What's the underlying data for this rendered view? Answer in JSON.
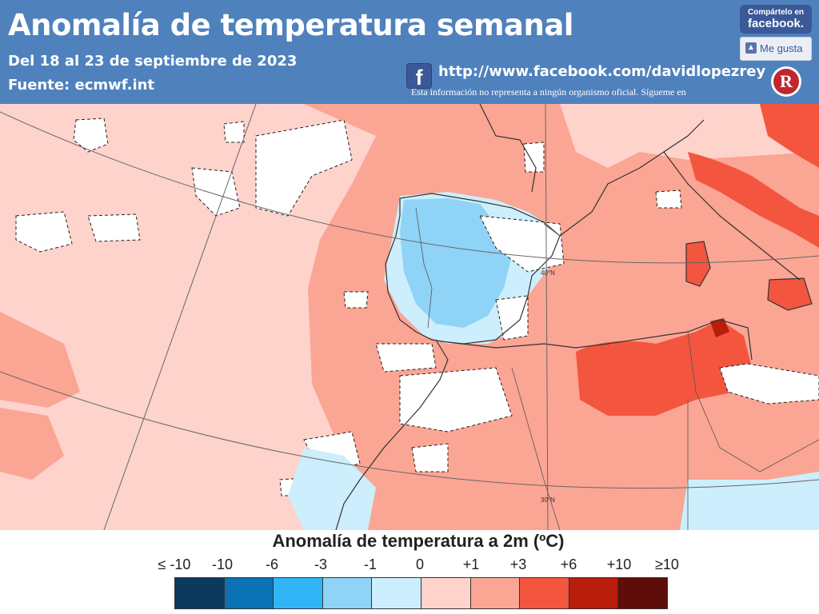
{
  "header": {
    "title": "Anomalía de temperatura semanal",
    "subtitle": "Del 18 al 23 de septiembre de 2023",
    "source": "Fuente: ecmwf.int",
    "fb_url": "http://www.facebook.com/davidlopezrey",
    "disclaimer": "Esta información no representa a ningún organismo oficial. Sígueme en",
    "fb_logo_letter": "f",
    "share_top": "Compártelo en",
    "share_fb": "facebook.",
    "like_label": "Me gusta",
    "brand_letter": "R"
  },
  "map": {
    "lat_labels": [
      "40°N",
      "30°N"
    ],
    "regions": [
      {
        "name": "iberia-interior",
        "anomaly_class": "-3 to -1"
      },
      {
        "name": "north-africa-east",
        "anomaly_class": "+3 to +6"
      },
      {
        "name": "italy-balkans",
        "anomaly_class": "+3 to +6"
      },
      {
        "name": "atlantic",
        "anomaly_class": "0 to +1"
      }
    ]
  },
  "legend": {
    "title": "Anomalía de temperatura a 2m (ºC)",
    "ticks": [
      "≤ -10",
      "-10",
      "-6",
      "-3",
      "-1",
      "0",
      "+1",
      "+3",
      "+6",
      "+10",
      "≥10"
    ],
    "colors": [
      "#0b3a5c",
      "#0a72b5",
      "#31b4f5",
      "#8fd3f7",
      "#cdeefc",
      "#fdd3cc",
      "#fba594",
      "#f3553e",
      "#b81e0b",
      "#5e0d08"
    ]
  }
}
